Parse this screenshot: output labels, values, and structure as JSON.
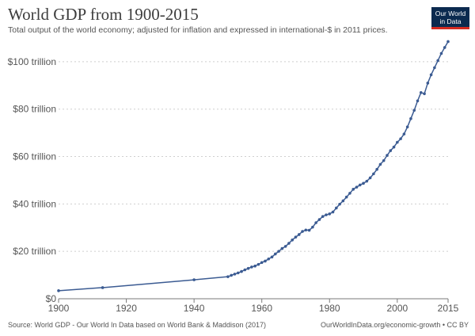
{
  "chart_data": {
    "type": "line",
    "title": "World GDP from 1900-2015",
    "subtitle": "Total output of the world economy; adjusted for inflation and expressed in international-$ in 2011 prices.",
    "xlabel": "",
    "ylabel": "",
    "xlim": [
      1900,
      2015
    ],
    "ylim": [
      0,
      110
    ],
    "y_unit": "trillion international-$ (2011 prices)",
    "x_ticks": [
      "1900",
      "1920",
      "1940",
      "1960",
      "1980",
      "2000",
      "2015"
    ],
    "y_ticks": [
      "$0",
      "$20 trillion",
      "$40 trillion",
      "$60 trillion",
      "$80 trillion",
      "$100 trillion"
    ],
    "grid": "horizontal dotted",
    "legend": "none",
    "line_color": "#3b5b92",
    "series": [
      {
        "x": [
          1900,
          1913,
          1940,
          1950,
          1951,
          1952,
          1953,
          1954,
          1955,
          1956,
          1957,
          1958,
          1959,
          1960,
          1961,
          1962,
          1963,
          1964,
          1965,
          1966,
          1967,
          1968,
          1969,
          1970,
          1971,
          1972,
          1973,
          1974,
          1975,
          1976,
          1977,
          1978,
          1979,
          1980,
          1981,
          1982,
          1983,
          1984,
          1985,
          1986,
          1987,
          1988,
          1989,
          1990,
          1991,
          1992,
          1993,
          1994,
          1995,
          1996,
          1997,
          1998,
          1999,
          2000,
          2001,
          2002,
          2003,
          2004,
          2005,
          2006,
          2007,
          2008,
          2009,
          2010,
          2011,
          2012,
          2013,
          2014,
          2015
        ],
        "values": [
          3.4,
          4.7,
          8.0,
          9.3,
          9.9,
          10.4,
          10.9,
          11.5,
          12.2,
          12.8,
          13.4,
          13.8,
          14.5,
          15.3,
          15.9,
          16.8,
          17.6,
          18.9,
          20.0,
          21.2,
          22.1,
          23.4,
          24.8,
          26.0,
          27.1,
          28.4,
          29.0,
          28.9,
          30.2,
          32.1,
          33.4,
          34.7,
          35.4,
          35.8,
          36.6,
          38.3,
          39.9,
          41.3,
          42.9,
          44.5,
          46.2,
          47.1,
          48.0,
          48.7,
          49.6,
          51.0,
          52.7,
          54.6,
          56.7,
          58.3,
          60.5,
          62.5,
          64.0,
          66.0,
          67.5,
          69.5,
          72.5,
          76.0,
          79.5,
          83.5,
          87.0,
          86.5,
          91.0,
          94.5,
          97.5,
          100.5,
          103.5,
          106.0,
          108.5
        ]
      }
    ]
  },
  "logo": {
    "line1": "Our World",
    "line2": "in Data"
  },
  "footer": {
    "source": "Source: World GDP - Our World In Data based on World Bank & Maddison (2017)",
    "url": "OurWorldInData.org/economic-growth • CC BY"
  }
}
